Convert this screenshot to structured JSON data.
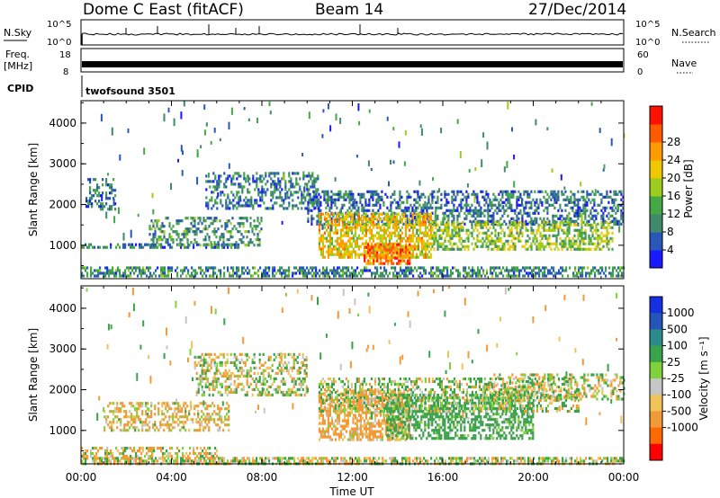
{
  "header": {
    "station": "Dome C East (fitACF)",
    "beam": "Beam 14",
    "date": "27/Dec/2014"
  },
  "strips": {
    "nsky": {
      "label": "N.Sky",
      "ticks": [
        "10^5",
        "10^0"
      ],
      "right_ticks": [
        "10^5",
        "10^0"
      ],
      "right_label": "N.Search"
    },
    "freq": {
      "label_line1": "Freq.",
      "label_line2": "[MHz]",
      "ticks": [
        "18",
        "8"
      ],
      "right_ticks": [
        "60",
        "0"
      ],
      "right_label": "Nave"
    },
    "cpid": {
      "label": "CPID",
      "value": "twofsound 3501"
    }
  },
  "colors": {
    "power": [
      "#1a1aff",
      "#2858b8",
      "#3f8a6a",
      "#44a844",
      "#9ccd1e",
      "#f0c800",
      "#ff9a00",
      "#ff5a00",
      "#ff1000"
    ],
    "velocity": [
      "#ff0000",
      "#ff6a00",
      "#f29a38",
      "#f2c25a",
      "#c6c6c6",
      "#7fd23a",
      "#3aa24a",
      "#2d8a8a",
      "#2455b8",
      "#1530e0"
    ]
  },
  "chart_data": [
    {
      "type": "heatmap",
      "panel": "power",
      "x_unit": "hours UT (0-24)",
      "xlim": [
        0,
        24
      ],
      "ylim": [
        180,
        4550
      ],
      "ylabel": "Slant Range [km]",
      "yticks": [
        "1000",
        "2000",
        "3000",
        "4000"
      ],
      "colorbar": {
        "label": "Power [dB]",
        "ticks": [
          "4",
          "8",
          "12",
          "16",
          "20",
          "24",
          "28"
        ],
        "range": [
          0,
          32
        ]
      },
      "regions": [
        {
          "x": [
            0.0,
            24.0
          ],
          "y": [
            250,
            480
          ],
          "value": 10,
          "density": 0.55
        },
        {
          "x": [
            0.2,
            1.5
          ],
          "y": [
            1900,
            2650
          ],
          "value": 9,
          "density": 0.35
        },
        {
          "x": [
            0.0,
            7.0
          ],
          "y": [
            950,
            1050
          ],
          "value": 8,
          "density": 0.5
        },
        {
          "x": [
            3.0,
            8.0
          ],
          "y": [
            1000,
            1700
          ],
          "value": 11,
          "density": 0.35
        },
        {
          "x": [
            5.5,
            10.5
          ],
          "y": [
            1900,
            2800
          ],
          "value": 9,
          "density": 0.4
        },
        {
          "x": [
            10.0,
            24.0
          ],
          "y": [
            1500,
            2350
          ],
          "value": 8,
          "density": 0.45
        },
        {
          "x": [
            10.5,
            15.5
          ],
          "y": [
            700,
            1800
          ],
          "value": 22,
          "density": 0.65
        },
        {
          "x": [
            12.5,
            14.5
          ],
          "y": [
            550,
            1050
          ],
          "value": 28,
          "density": 0.7
        },
        {
          "x": [
            15.5,
            23.5
          ],
          "y": [
            900,
            1600
          ],
          "value": 17,
          "density": 0.5
        }
      ]
    },
    {
      "type": "heatmap",
      "panel": "velocity",
      "x_unit": "hours UT (0-24)",
      "xlim": [
        0,
        24
      ],
      "ylim": [
        180,
        4550
      ],
      "xlabel": "Time UT",
      "ylabel": "Slant Range [km]",
      "xticks": [
        "00:00",
        "04:00",
        "08:00",
        "12:00",
        "16:00",
        "20:00",
        "00:00"
      ],
      "yticks": [
        "1000",
        "2000",
        "3000",
        "4000"
      ],
      "colorbar": {
        "label": "Velocity [m s⁻¹]",
        "ticks": [
          "1000",
          "500",
          "100",
          "25",
          "-25",
          "-100",
          "-500",
          "-1000"
        ]
      },
      "regions": [
        {
          "x": [
            0.0,
            24.0
          ],
          "y": [
            200,
            350
          ],
          "value": 0,
          "density": 0.65
        },
        {
          "x": [
            0.0,
            6.0
          ],
          "y": [
            350,
            600
          ],
          "value": -60,
          "density": 0.45
        },
        {
          "x": [
            1.0,
            6.5
          ],
          "y": [
            1000,
            1700
          ],
          "value": -120,
          "density": 0.4
        },
        {
          "x": [
            5.0,
            10.0
          ],
          "y": [
            1900,
            2900
          ],
          "value": 0,
          "density": 0.4
        },
        {
          "x": [
            10.5,
            14.5
          ],
          "y": [
            800,
            2000
          ],
          "value": -200,
          "density": 0.6
        },
        {
          "x": [
            13.5,
            20.0
          ],
          "y": [
            800,
            1900
          ],
          "value": 250,
          "density": 0.55
        },
        {
          "x": [
            18.0,
            24.0
          ],
          "y": [
            1800,
            2400
          ],
          "value": 0,
          "density": 0.35
        },
        {
          "x": [
            10.5,
            22.0
          ],
          "y": [
            1500,
            2300
          ],
          "value": 60,
          "density": 0.4
        }
      ]
    }
  ]
}
